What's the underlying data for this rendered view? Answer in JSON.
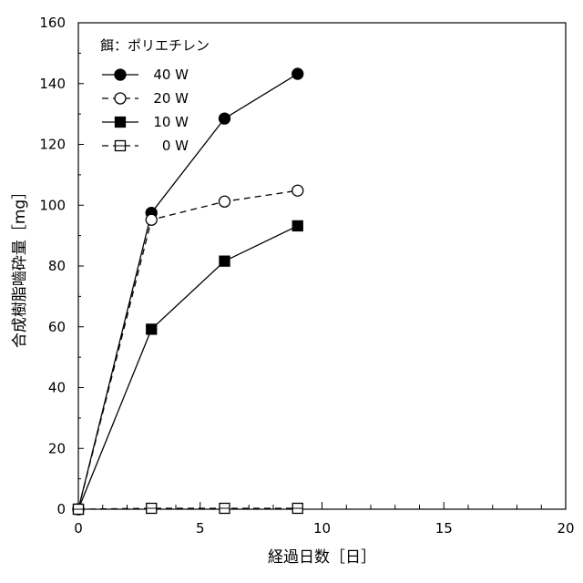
{
  "chart_data": {
    "type": "line",
    "title": "",
    "xlabel": "経過日数［日］",
    "ylabel": "合成樹脂嚙砕量［mg］",
    "xlim": [
      0,
      20
    ],
    "ylim": [
      0,
      160
    ],
    "xticks": [
      0,
      5,
      10,
      15,
      20
    ],
    "yticks": [
      0,
      20,
      40,
      60,
      80,
      100,
      120,
      140,
      160
    ],
    "grid": false,
    "legend_title": "餌：ポリエチレン",
    "legend_position": "top-left",
    "series": [
      {
        "name": "40 W",
        "marker": "filled-circle",
        "dashed": false,
        "x": [
          0,
          3,
          6,
          9
        ],
        "y": [
          0,
          97.5,
          128.5,
          143.2
        ]
      },
      {
        "name": "20 W",
        "marker": "open-circle",
        "dashed": true,
        "x": [
          0,
          3,
          6,
          9
        ],
        "y": [
          0,
          95.2,
          101.2,
          104.8
        ]
      },
      {
        "name": "10 W",
        "marker": "filled-square",
        "dashed": false,
        "x": [
          0,
          3,
          6,
          9
        ],
        "y": [
          0,
          59.2,
          81.6,
          93.2
        ]
      },
      {
        "name": "0 W",
        "marker": "open-square",
        "dashed": true,
        "x": [
          0,
          3,
          6,
          9
        ],
        "y": [
          0,
          0.3,
          0.3,
          0.3
        ]
      }
    ]
  }
}
